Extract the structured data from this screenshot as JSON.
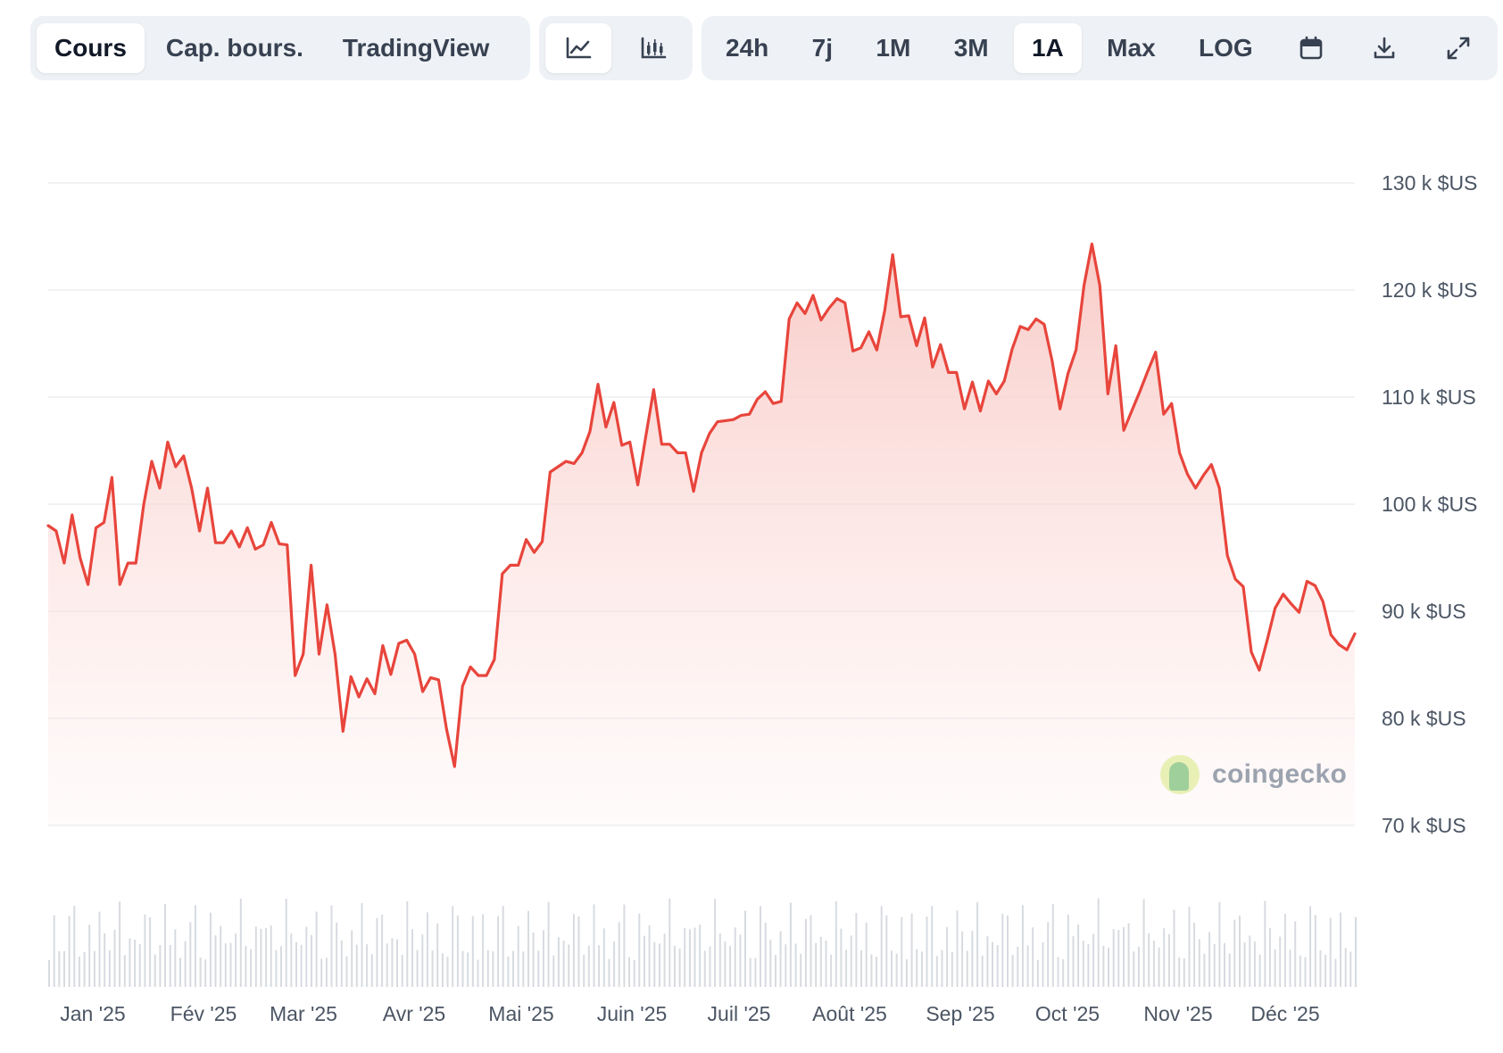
{
  "toolbar": {
    "view_tabs": [
      "Cours",
      "Cap. bours.",
      "TradingView"
    ],
    "active_view": "Cours",
    "chart_style_icons": [
      "line-chart-icon",
      "candlestick-chart-icon"
    ],
    "active_style": "line-chart-icon",
    "ranges": [
      "24h",
      "7j",
      "1M",
      "3M",
      "1A",
      "Max",
      "LOG"
    ],
    "active_range": "1A",
    "action_icons": [
      "calendar-icon",
      "download-icon",
      "fullscreen-icon"
    ]
  },
  "watermark": "coingecko",
  "colors": {
    "line": "#e8453c",
    "fill": "#fde4e2",
    "grid": "#eceef1",
    "volume": "#d7dbe0"
  },
  "chart_data": {
    "type": "area",
    "y_unit": "k $US",
    "ylim": [
      70,
      130
    ],
    "y_ticks": [
      70,
      80,
      90,
      100,
      110,
      120,
      130
    ],
    "y_tick_labels": [
      "70 k $US",
      "80 k $US",
      "90 k $US",
      "100 k $US",
      "110 k $US",
      "120 k $US",
      "130 k $US"
    ],
    "x_tick_labels": [
      "Jan '25",
      "Fév '25",
      "Mar '25",
      "Avr '25",
      "Mai '25",
      "Juin '25",
      "Juil '25",
      "Août '25",
      "Sep '25",
      "Oct '25",
      "Nov '25",
      "Déc '25"
    ],
    "grid": true,
    "series": [
      {
        "values": [
          98,
          97.5,
          94.5,
          99,
          95,
          92.5,
          97.8,
          98.3,
          102.5,
          92.5,
          94.5,
          94.5,
          100,
          104,
          101.5,
          105.8,
          103.5,
          104.5,
          101.5,
          97.5,
          101.5,
          96.4,
          96.4,
          97.5,
          96,
          97.8,
          95.8,
          96.2,
          98.3,
          96.3,
          96.2,
          84,
          86,
          94.3,
          86,
          90.6,
          86,
          78.8,
          83.9,
          82,
          83.7,
          82.3,
          86.8,
          84.1,
          87,
          87.3,
          86,
          82.5,
          83.8,
          83.6,
          79,
          75.5,
          83,
          84.8,
          84,
          84,
          85.5,
          93.5,
          94.3,
          94.3,
          96.7,
          95.5,
          96.5,
          103,
          103.5,
          104,
          103.8,
          104.8,
          106.8,
          111.2,
          107.2,
          109.5,
          105.5,
          105.8,
          101.8,
          106.3,
          110.7,
          105.6,
          105.6,
          104.8,
          104.8,
          101.2,
          104.8,
          106.6,
          107.7,
          107.8,
          107.9,
          108.3,
          108.4,
          109.8,
          110.5,
          109.4,
          109.6,
          117.3,
          118.8,
          117.8,
          119.5,
          117.2,
          118.3,
          119.2,
          118.8,
          114.3,
          114.6,
          116.1,
          114.4,
          118.1,
          123.3,
          117.5,
          117.6,
          114.8,
          117.4,
          112.8,
          114.9,
          112.3,
          112.3,
          108.9,
          111.4,
          108.7,
          111.5,
          110.3,
          111.5,
          114.5,
          116.6,
          116.3,
          117.3,
          116.8,
          113.4,
          108.9,
          112.2,
          114.4,
          120.4,
          124.3,
          120.4,
          110.3,
          114.8,
          106.9,
          108.7,
          110.5,
          112.4,
          114.2,
          108.4,
          109.4,
          104.8,
          102.8,
          101.5,
          102.7,
          103.7,
          101.5,
          95.2,
          93,
          92.3,
          86.2,
          84.5,
          87.3,
          90.3,
          91.6,
          90.7,
          89.9,
          92.8,
          92.4,
          90.9,
          87.8,
          86.9,
          86.4,
          87.9
        ]
      }
    ]
  }
}
